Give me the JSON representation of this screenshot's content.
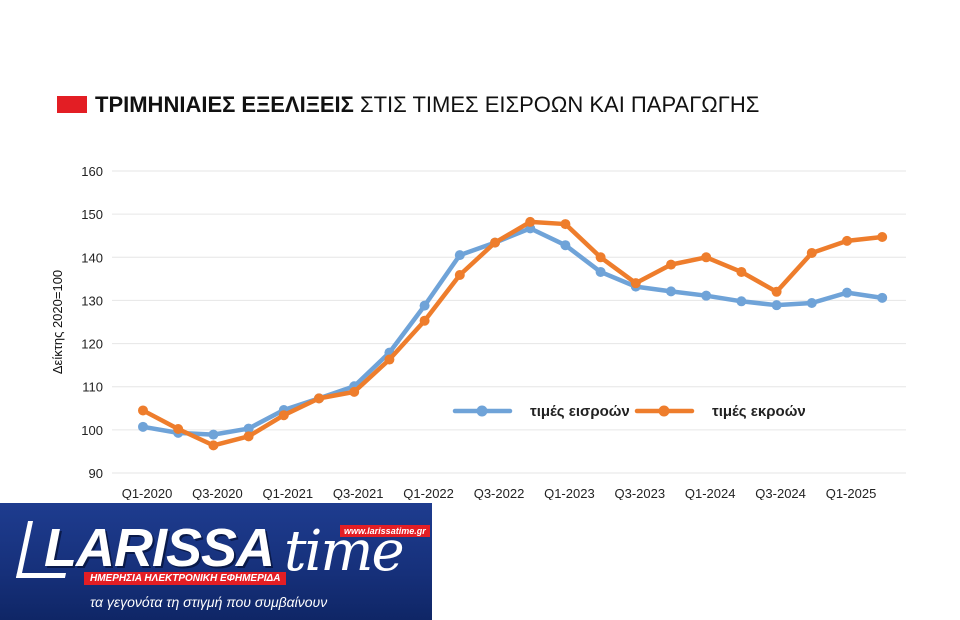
{
  "title": {
    "bold": "ΤΡΙΜΗΝΙΑΙΕΣ ΕΞΕΛΙΞΕΙΣ",
    "rest": "ΣΤΙΣ ΤΙΜΕΣ ΕΙΣΡΟΩΝ ΚΑΙ ΠΑΡΑΓΩΓΗΣ"
  },
  "colors": {
    "accent": "#e31e24",
    "series1": "#6fa3d8",
    "series2": "#ee7d2c",
    "grid": "#e6e6e6"
  },
  "chart_data": {
    "type": "line",
    "ylabel": "Δείκτης 2020=100",
    "ylim": [
      90,
      160
    ],
    "yticks": [
      90,
      100,
      110,
      120,
      130,
      140,
      150,
      160
    ],
    "x": [
      "Q1-2020",
      "Q2-2020",
      "Q3-2020",
      "Q4-2020",
      "Q1-2021",
      "Q2-2021",
      "Q3-2021",
      "Q4-2021",
      "Q1-2022",
      "Q2-2022",
      "Q3-2022",
      "Q4-2022",
      "Q1-2023",
      "Q2-2023",
      "Q3-2023",
      "Q4-2023",
      "Q1-2024",
      "Q2-2024",
      "Q3-2024",
      "Q4-2024",
      "Q1-2025",
      "Q2-2025"
    ],
    "xtick_labels": [
      "Q1-2020",
      "Q3-2020",
      "Q1-2021",
      "Q3-2021",
      "Q1-2022",
      "Q3-2022",
      "Q1-2023",
      "Q3-2023",
      "Q1-2024",
      "Q3-2024",
      "Q1-2025"
    ],
    "grid": true,
    "legend": "inside-center-right",
    "series": [
      {
        "name": "τιμές εισροών",
        "values": [
          100.7,
          99.3,
          98.9,
          100.3,
          104.6,
          107.3,
          110.1,
          117.9,
          128.8,
          140.5,
          143.4,
          146.7,
          142.8,
          136.6,
          133.2,
          132.1,
          131.1,
          129.8,
          128.9,
          129.4,
          131.8,
          130.6
        ]
      },
      {
        "name": "τιμές εκροών",
        "values": [
          104.5,
          100.2,
          96.4,
          98.5,
          103.4,
          107.3,
          108.8,
          116.3,
          125.3,
          135.9,
          143.4,
          148.2,
          147.7,
          140.0,
          134.0,
          138.3,
          140.0,
          136.6,
          132.0,
          141.0,
          143.8,
          144.7
        ]
      }
    ]
  },
  "logo": {
    "name_part1": "LARISSA",
    "name_part2": "time",
    "url": "www.larissatime.gr",
    "tagline": "ΗΜΕΡΗΣΙΑ ΗΛΕΚΤΡΟΝΙΚΗ ΕΦΗΜΕΡΙΔΑ",
    "slogan": "τα γεγονότα τη στιγμή που συμβαίνουν"
  }
}
